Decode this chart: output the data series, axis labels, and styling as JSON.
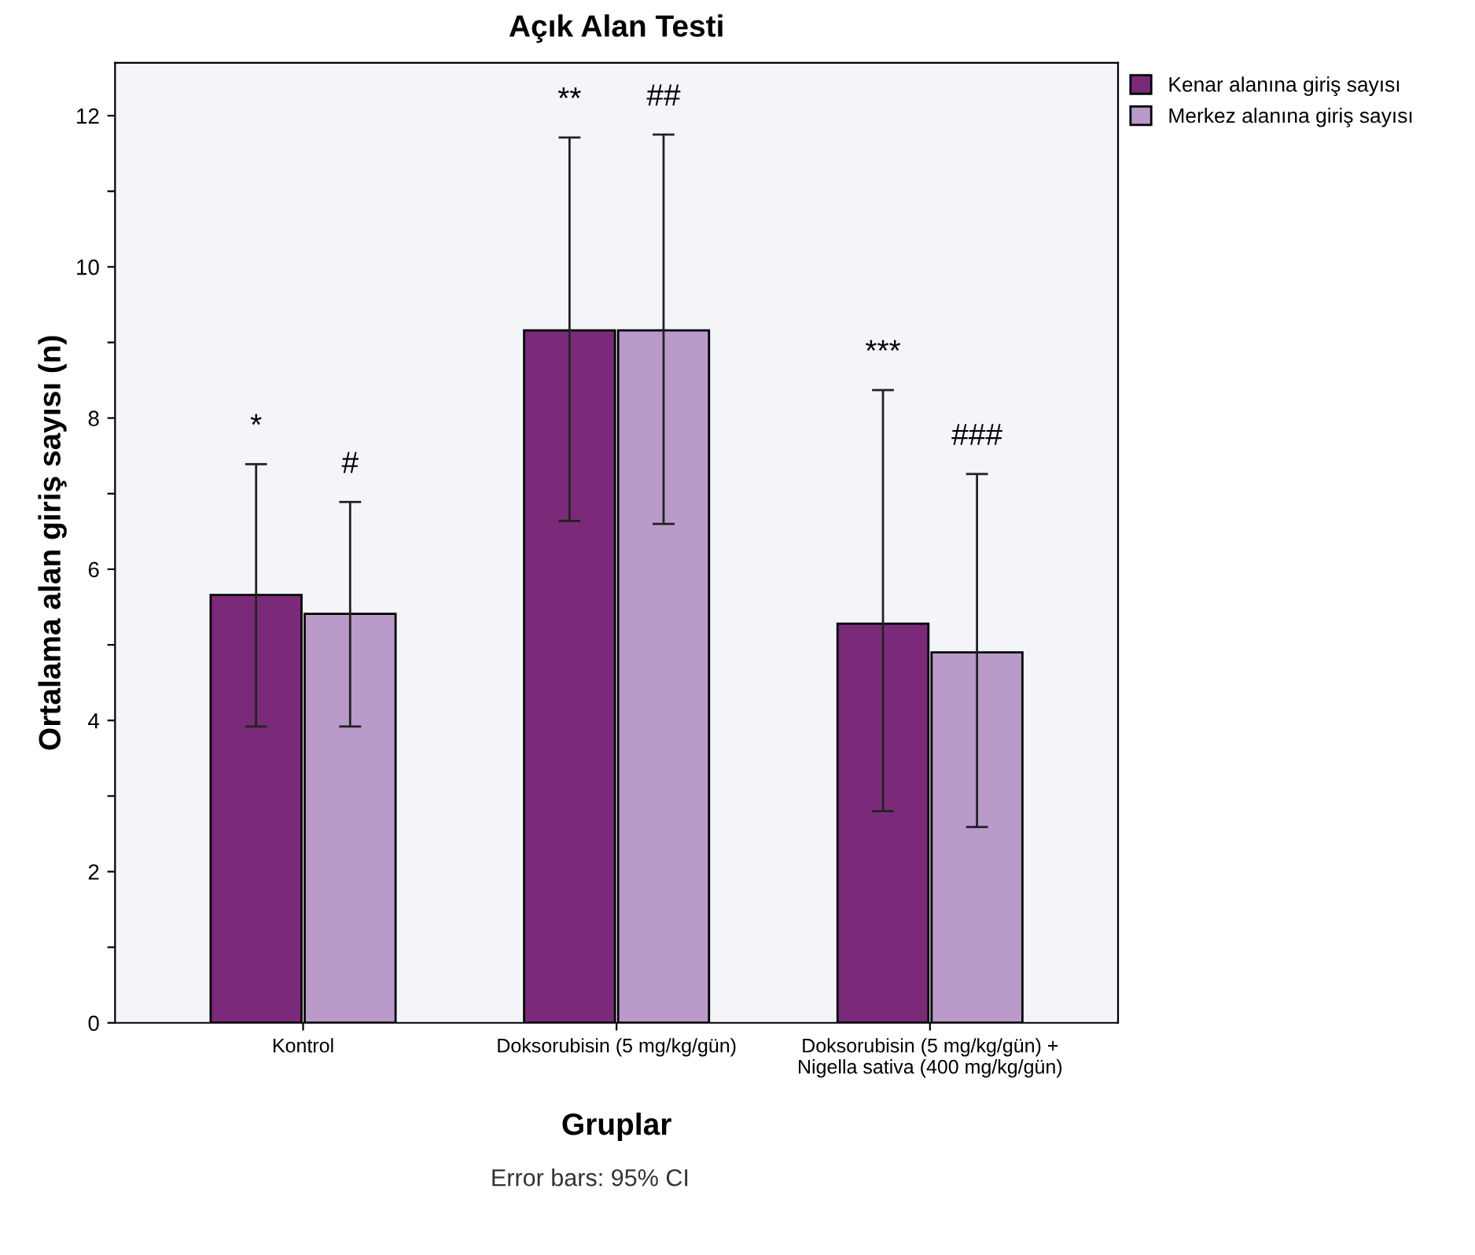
{
  "chart_data": {
    "type": "bar",
    "title": "Açık Alan Testi",
    "xlabel": "Gruplar",
    "ylabel": "Ortalama alan giriş sayısı (n)",
    "categories": [
      "Kontrol",
      "Doksorubisin (5 mg/kg/gün)",
      "Doksorubisin (5 mg/kg/gün) +\nNigella sativa (400 mg/kg/gün)"
    ],
    "series": [
      {
        "name": "Kenar alanına giriş sayısı",
        "color": "#7b2a7a",
        "values": [
          5.66,
          9.16,
          5.28
        ],
        "errors": [
          [
            3.92,
            7.39
          ],
          [
            6.64,
            11.71
          ],
          [
            2.8,
            8.37
          ]
        ]
      },
      {
        "name": "Merkez alanına giriş sayısı",
        "color": "#b99acb",
        "values": [
          5.41,
          9.16,
          4.9
        ],
        "errors": [
          [
            3.92,
            6.89
          ],
          [
            6.6,
            11.75
          ],
          [
            2.59,
            7.26
          ]
        ]
      }
    ],
    "ylim": [
      0,
      12.7
    ],
    "yticks": [
      0,
      {
        "value": 1,
        "label": null
      },
      2,
      {
        "value": 3,
        "label": null
      },
      4,
      {
        "value": 5,
        "label": null
      },
      6,
      {
        "value": 7,
        "label": null
      },
      8,
      {
        "value": 9,
        "label": null
      },
      10,
      {
        "value": 11,
        "label": null
      },
      12
    ],
    "legend": "top right",
    "grid": false,
    "annotations": [
      "*",
      "#",
      "**",
      "##",
      "***",
      "###",
      "Error bars: 95% CI"
    ]
  }
}
